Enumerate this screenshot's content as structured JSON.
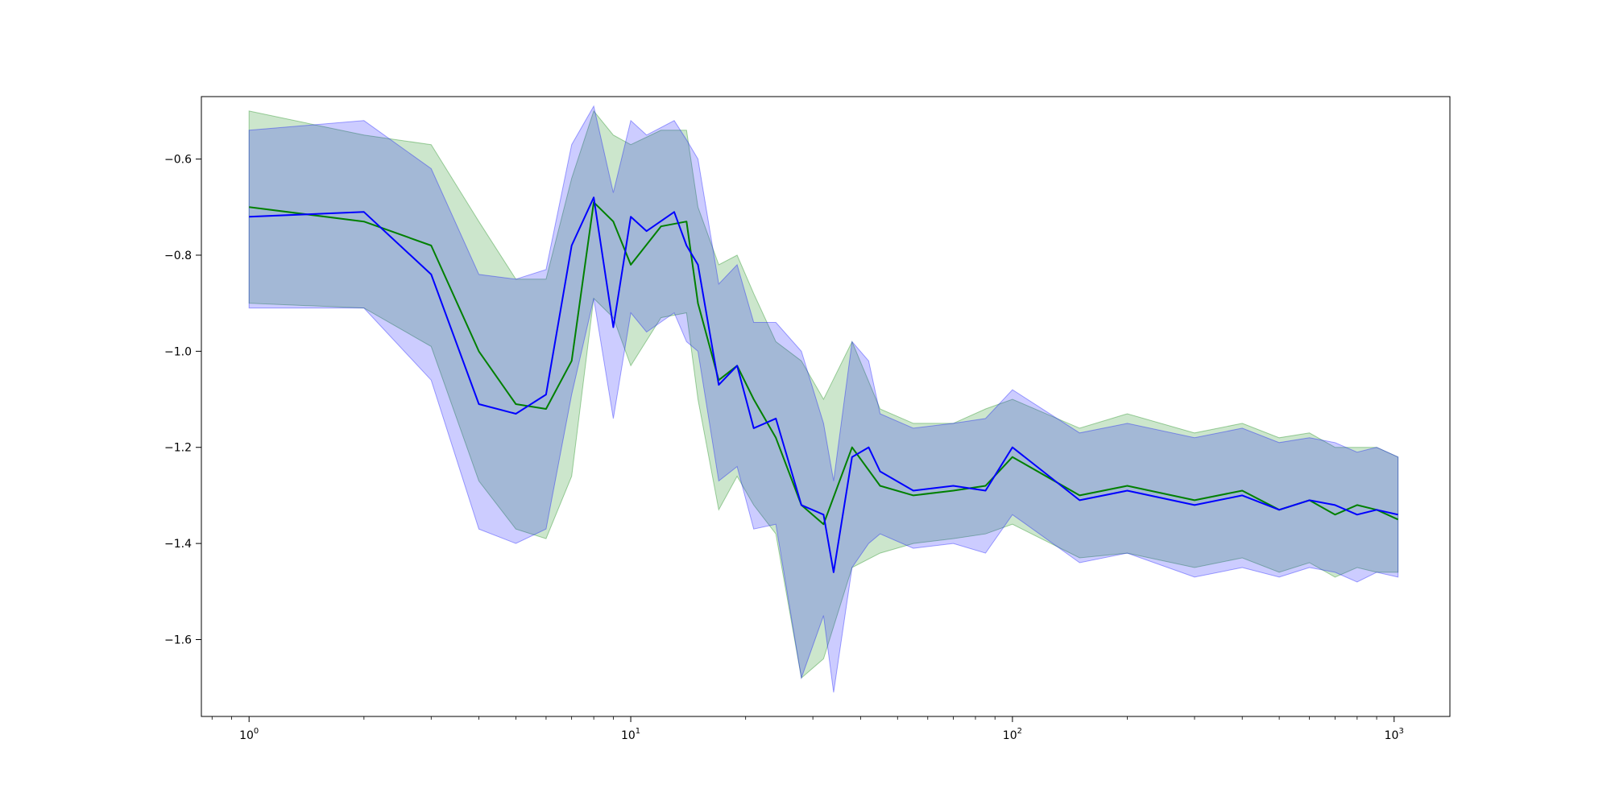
{
  "chart_data": {
    "type": "line",
    "title": "",
    "xlabel": "",
    "ylabel": "",
    "xscale": "log",
    "xlim": [
      0.75,
      1400
    ],
    "ylim": [
      -1.76,
      -0.47
    ],
    "x_ticks": [
      {
        "base": "10",
        "exp": "0",
        "value": 1
      },
      {
        "base": "10",
        "exp": "1",
        "value": 10
      },
      {
        "base": "10",
        "exp": "2",
        "value": 100
      },
      {
        "base": "10",
        "exp": "3",
        "value": 1000
      }
    ],
    "y_ticks": [
      {
        "label": "−0.6",
        "value": -0.6
      },
      {
        "label": "−0.8",
        "value": -0.8
      },
      {
        "label": "−1.0",
        "value": -1.0
      },
      {
        "label": "−1.2",
        "value": -1.2
      },
      {
        "label": "−1.4",
        "value": -1.4
      },
      {
        "label": "−1.6",
        "value": -1.6
      }
    ],
    "grid": false,
    "legend": "none",
    "series": [
      {
        "color": "#008000",
        "band_color": "#008000",
        "band_opacity": 0.2,
        "x": [
          1,
          2,
          3,
          4,
          5,
          6,
          7,
          8,
          9,
          10,
          12,
          14,
          15,
          17,
          19,
          21,
          24,
          28,
          32,
          38,
          45,
          55,
          70,
          85,
          100,
          150,
          200,
          300,
          400,
          500,
          600,
          700,
          800,
          900,
          1024
        ],
        "mean": [
          -0.7,
          -0.73,
          -0.78,
          -1.0,
          -1.11,
          -1.12,
          -1.02,
          -0.69,
          -0.73,
          -0.82,
          -0.74,
          -0.73,
          -0.9,
          -1.06,
          -1.03,
          -1.1,
          -1.18,
          -1.32,
          -1.36,
          -1.2,
          -1.28,
          -1.3,
          -1.29,
          -1.28,
          -1.22,
          -1.3,
          -1.28,
          -1.31,
          -1.29,
          -1.33,
          -1.31,
          -1.34,
          -1.32,
          -1.33,
          -1.35
        ],
        "upper": [
          -0.5,
          -0.55,
          -0.57,
          -0.73,
          -0.85,
          -0.85,
          -0.64,
          -0.5,
          -0.55,
          -0.57,
          -0.54,
          -0.54,
          -0.7,
          -0.82,
          -0.8,
          -0.88,
          -0.98,
          -1.02,
          -1.1,
          -0.98,
          -1.12,
          -1.15,
          -1.15,
          -1.12,
          -1.1,
          -1.16,
          -1.13,
          -1.17,
          -1.15,
          -1.18,
          -1.17,
          -1.2,
          -1.2,
          -1.2,
          -1.22
        ],
        "lower": [
          -0.9,
          -0.91,
          -0.99,
          -1.27,
          -1.37,
          -1.39,
          -1.26,
          -0.89,
          -0.93,
          -1.03,
          -0.93,
          -0.92,
          -1.1,
          -1.33,
          -1.26,
          -1.32,
          -1.38,
          -1.68,
          -1.64,
          -1.45,
          -1.42,
          -1.4,
          -1.39,
          -1.38,
          -1.36,
          -1.43,
          -1.42,
          -1.45,
          -1.43,
          -1.46,
          -1.44,
          -1.47,
          -1.45,
          -1.46,
          -1.46
        ]
      },
      {
        "color": "#0000ff",
        "band_color": "#0000ff",
        "band_opacity": 0.2,
        "x": [
          1,
          2,
          3,
          4,
          5,
          6,
          7,
          8,
          9,
          10,
          11,
          13,
          14,
          15,
          17,
          19,
          21,
          24,
          28,
          32,
          34,
          38,
          42,
          45,
          55,
          70,
          85,
          100,
          150,
          200,
          300,
          400,
          500,
          600,
          700,
          800,
          900,
          1024
        ],
        "mean": [
          -0.72,
          -0.71,
          -0.84,
          -1.11,
          -1.13,
          -1.09,
          -0.78,
          -0.68,
          -0.95,
          -0.72,
          -0.75,
          -0.71,
          -0.78,
          -0.82,
          -1.07,
          -1.03,
          -1.16,
          -1.14,
          -1.32,
          -1.34,
          -1.46,
          -1.22,
          -1.2,
          -1.25,
          -1.29,
          -1.28,
          -1.29,
          -1.2,
          -1.31,
          -1.29,
          -1.32,
          -1.3,
          -1.33,
          -1.31,
          -1.32,
          -1.34,
          -1.33,
          -1.34
        ],
        "upper": [
          -0.54,
          -0.52,
          -0.62,
          -0.84,
          -0.85,
          -0.83,
          -0.57,
          -0.49,
          -0.67,
          -0.52,
          -0.55,
          -0.52,
          -0.56,
          -0.6,
          -0.86,
          -0.82,
          -0.94,
          -0.94,
          -1.0,
          -1.15,
          -1.27,
          -0.98,
          -1.02,
          -1.13,
          -1.16,
          -1.15,
          -1.14,
          -1.08,
          -1.17,
          -1.15,
          -1.18,
          -1.16,
          -1.19,
          -1.18,
          -1.19,
          -1.21,
          -1.2,
          -1.22
        ],
        "lower": [
          -0.91,
          -0.91,
          -1.06,
          -1.37,
          -1.4,
          -1.37,
          -1.09,
          -0.89,
          -1.14,
          -0.92,
          -0.96,
          -0.92,
          -0.98,
          -1.0,
          -1.27,
          -1.24,
          -1.37,
          -1.36,
          -1.68,
          -1.55,
          -1.71,
          -1.45,
          -1.4,
          -1.38,
          -1.41,
          -1.4,
          -1.42,
          -1.34,
          -1.44,
          -1.42,
          -1.47,
          -1.45,
          -1.47,
          -1.45,
          -1.46,
          -1.48,
          -1.46,
          -1.47
        ]
      }
    ]
  }
}
